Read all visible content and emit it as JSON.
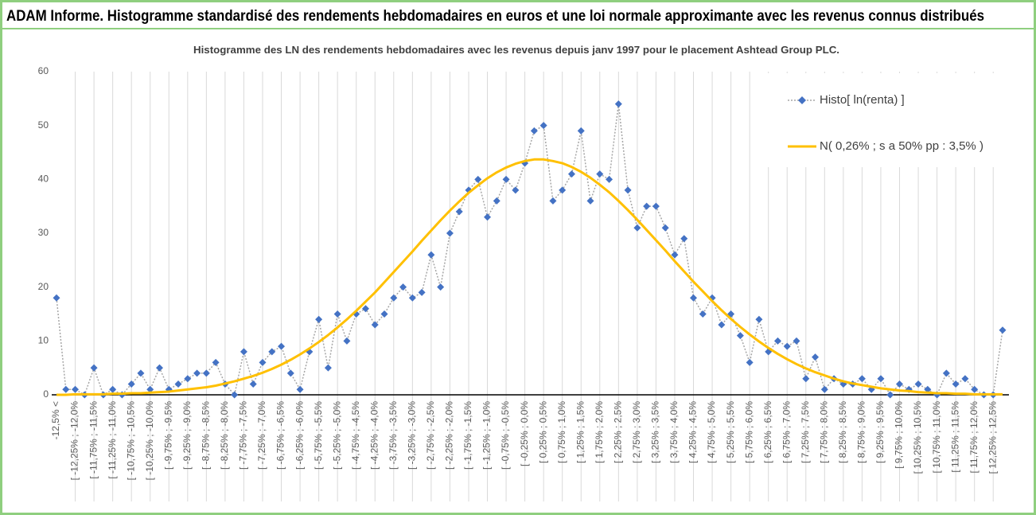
{
  "chart_data": {
    "type": "line",
    "title": "ADAM Informe. Histogramme standardisé des rendements hebdomadaires en euros et une loi normale approximante avec les revenus connus distribués",
    "subtitle": "Histogramme des LN des rendements hebdomadaires avec les revenus depuis janv 1997 pour le placement Ashtead Group PLC.",
    "categories": [
      "-12,5% <",
      null,
      "[ -12,25% ; -12,0%",
      null,
      "[ -11,75% ; -11,5%",
      null,
      "[ -11,25% ; -11,0%",
      null,
      "[ -10,75% ; -10,5%",
      null,
      "[ -10,25% ; -10,0%",
      null,
      "[ -9,75% ; -9,5%",
      null,
      "[ -9,25% ; -9,0%",
      null,
      "[ -8,75% ; -8,5%",
      null,
      "[ -8,25% ; -8,0%",
      null,
      "[ -7,75% ; -7,5%",
      null,
      "[ -7,25% ; -7,0%",
      null,
      "[ -6,75% ; -6,5%",
      null,
      "[ -6,25% ; -6,0%",
      null,
      "[ -5,75% ; -5,5%",
      null,
      "[ -5,25% ; -5,0%",
      null,
      "[ -4,75% ; -4,5%",
      null,
      "[ -4,25% ; -4,0%",
      null,
      "[ -3,75% ; -3,5%",
      null,
      "[ -3,25% ; -3,0%",
      null,
      "[ -2,75% ; -2,5%",
      null,
      "[ -2,25% ; -2,0%",
      null,
      "[ -1,75% ; -1,5%",
      null,
      "[ -1,25% ; -1,0%",
      null,
      "[ -0,75% ; -0,5%",
      null,
      "[ -0,25% ; 0,0%",
      null,
      "[ 0,25% ; 0,5%",
      null,
      "[ 0,75% ; 1,0%",
      null,
      "[ 1,25% ; 1,5%",
      null,
      "[ 1,75% ; 2,0%",
      null,
      "[ 2,25% ; 2,5%",
      null,
      "[ 2,75% ; 3,0%",
      null,
      "[ 3,25% ; 3,5%",
      null,
      "[ 3,75% ; 4,0%",
      null,
      "[ 4,25% ; 4,5%",
      null,
      "[ 4,75% ; 5,0%",
      null,
      "[ 5,25% ; 5,5%",
      null,
      "[ 5,75% ; 6,0%",
      null,
      "[ 6,25% ; 6,5%",
      null,
      "[ 6,75% ; 7,0%",
      null,
      "[ 7,25% ; 7,5%",
      null,
      "[ 7,75% ; 8,0%",
      null,
      "[ 8,25% ; 8,5%",
      null,
      "[ 8,75% ; 9,0%",
      null,
      "[ 9,25% ; 9,5%",
      null,
      "[ 9,75% ; 10,0%",
      null,
      "[ 10,25% ; 10,5%",
      null,
      "[ 10,75% ; 11,0%",
      null,
      "[ 11,25% ; 11,5%",
      null,
      "[ 11,75% ; 12,0%",
      null,
      "[ 12,25% ; 12,5%",
      null
    ],
    "series": [
      {
        "name": "Histo[ ln(renta) ]",
        "color": "#4472c4",
        "line_color": "#a6a6a6",
        "values": [
          18,
          1,
          1,
          0,
          5,
          0,
          1,
          0,
          2,
          4,
          1,
          5,
          1,
          2,
          3,
          4,
          4,
          6,
          2,
          0,
          8,
          2,
          6,
          8,
          9,
          4,
          1,
          8,
          14,
          5,
          15,
          10,
          15,
          16,
          13,
          15,
          18,
          20,
          18,
          19,
          26,
          20,
          30,
          34,
          38,
          40,
          33,
          36,
          40,
          38,
          43,
          49,
          50,
          36,
          38,
          41,
          49,
          36,
          41,
          40,
          54,
          38,
          31,
          35,
          35,
          31,
          26,
          29,
          18,
          15,
          18,
          13,
          15,
          11,
          6,
          14,
          8,
          10,
          9,
          10,
          3,
          7,
          1,
          3,
          2,
          2,
          3,
          1,
          3,
          0,
          2,
          1,
          2,
          1,
          0,
          4,
          2,
          3,
          1,
          0,
          0,
          12
        ]
      },
      {
        "name": "N( 0,26% ; s a 50% pp : 3,5% )",
        "color": "#ffc000",
        "values": [
          0,
          0,
          0.1,
          0.1,
          0.1,
          0.1,
          0.2,
          0.2,
          0.3,
          0.3,
          0.4,
          0.5,
          0.6,
          0.8,
          1.0,
          1.2,
          1.4,
          1.7,
          2.1,
          2.5,
          3.0,
          3.5,
          4.1,
          4.8,
          5.6,
          6.5,
          7.5,
          8.6,
          9.8,
          11.1,
          12.5,
          14.0,
          15.6,
          17.3,
          19.0,
          20.9,
          22.8,
          24.7,
          26.6,
          28.6,
          30.5,
          32.4,
          34.2,
          35.9,
          37.5,
          38.9,
          40.2,
          41.3,
          42.2,
          42.9,
          43.4,
          43.7,
          43.7,
          43.4,
          43.0,
          42.3,
          41.4,
          40.3,
          39.0,
          37.6,
          36.0,
          34.3,
          32.5,
          30.6,
          28.7,
          26.8,
          24.8,
          22.9,
          21.0,
          19.2,
          17.4,
          15.7,
          14.1,
          12.6,
          11.2,
          9.9,
          8.7,
          7.6,
          6.6,
          5.7,
          4.9,
          4.2,
          3.6,
          3.0,
          2.5,
          2.1,
          1.8,
          1.5,
          1.2,
          1.0,
          0.8,
          0.7,
          0.5,
          0.4,
          0.3,
          0.3,
          0.2,
          0.2,
          0.1,
          0.1,
          0.1,
          0.1
        ]
      }
    ],
    "ylim": [
      0,
      60
    ],
    "yticks": [
      0,
      10,
      20,
      30,
      40,
      50,
      60
    ],
    "legend": "top-right",
    "grid": false
  }
}
